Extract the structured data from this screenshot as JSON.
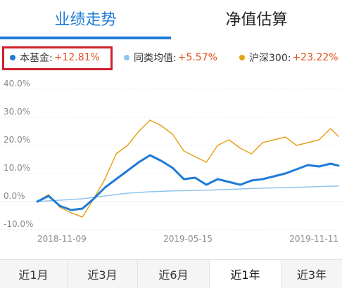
{
  "tabs": [
    {
      "label": "业绩走势",
      "active": true
    },
    {
      "label": "净值估算",
      "active": false
    }
  ],
  "legend": [
    {
      "label": "本基金:",
      "value": "+12.81%",
      "color": "#1e7bd6"
    },
    {
      "label": "同类均值:",
      "value": "+5.57%",
      "color": "#8fc4ec"
    },
    {
      "label": "沪深300:",
      "value": "+23.22%",
      "color": "#e3a21a"
    }
  ],
  "periods": [
    {
      "label": "近1月",
      "active": false
    },
    {
      "label": "近3月",
      "active": false
    },
    {
      "label": "近6月",
      "active": false
    },
    {
      "label": "近1年",
      "active": true
    },
    {
      "label": "近3年",
      "active": false
    }
  ],
  "chart_data": {
    "type": "line",
    "ylim": [
      -10,
      40
    ],
    "y_ticks": [
      "40.0%",
      "30.0%",
      "20.0%",
      "10.0%",
      "0.0%",
      "-10.0%"
    ],
    "x_tick_labels": [
      "2018-11-09",
      "2019-05-15",
      "2019-11-11"
    ],
    "x_range": [
      "2018-11-09",
      "2019-11-18"
    ],
    "grid": true,
    "series": [
      {
        "name": "本基金",
        "color": "#1e7bd6",
        "x": [
          "2018-11-09",
          "2018-11-23",
          "2018-12-07",
          "2018-12-21",
          "2019-01-04",
          "2019-01-18",
          "2019-02-01",
          "2019-02-15",
          "2019-03-01",
          "2019-03-15",
          "2019-03-29",
          "2019-04-12",
          "2019-04-26",
          "2019-05-10",
          "2019-05-24",
          "2019-06-07",
          "2019-06-21",
          "2019-07-05",
          "2019-07-19",
          "2019-08-02",
          "2019-08-16",
          "2019-08-30",
          "2019-09-13",
          "2019-09-27",
          "2019-10-11",
          "2019-10-25",
          "2019-11-08",
          "2019-11-18"
        ],
        "values": [
          0.0,
          2.0,
          -1.5,
          -3.0,
          -2.5,
          1.0,
          5.0,
          8.0,
          11.0,
          14.0,
          16.5,
          14.5,
          12.0,
          8.0,
          8.5,
          6.0,
          8.0,
          7.0,
          6.0,
          7.5,
          8.0,
          9.0,
          10.0,
          11.5,
          13.0,
          12.5,
          13.5,
          12.81
        ]
      },
      {
        "name": "同类均值",
        "color": "#8fc4ec",
        "x": [
          "2018-11-09",
          "2018-12-07",
          "2019-01-04",
          "2019-02-01",
          "2019-03-01",
          "2019-03-29",
          "2019-04-26",
          "2019-05-24",
          "2019-06-21",
          "2019-07-19",
          "2019-08-16",
          "2019-09-13",
          "2019-10-11",
          "2019-11-08",
          "2019-11-18"
        ],
        "values": [
          0.0,
          0.5,
          1.0,
          2.0,
          3.0,
          3.5,
          3.8,
          4.0,
          4.2,
          4.5,
          4.8,
          5.0,
          5.2,
          5.5,
          5.57
        ]
      },
      {
        "name": "沪深300",
        "color": "#e3a21a",
        "x": [
          "2018-11-09",
          "2018-11-23",
          "2018-12-07",
          "2018-12-21",
          "2019-01-04",
          "2019-01-18",
          "2019-02-01",
          "2019-02-15",
          "2019-03-01",
          "2019-03-15",
          "2019-03-29",
          "2019-04-12",
          "2019-04-26",
          "2019-05-10",
          "2019-05-24",
          "2019-06-07",
          "2019-06-21",
          "2019-07-05",
          "2019-07-19",
          "2019-08-02",
          "2019-08-16",
          "2019-08-30",
          "2019-09-13",
          "2019-09-27",
          "2019-10-11",
          "2019-10-25",
          "2019-11-08",
          "2019-11-18"
        ],
        "values": [
          0.0,
          2.5,
          -2.0,
          -4.0,
          -5.5,
          1.0,
          8.0,
          17.0,
          20.0,
          25.0,
          29.0,
          27.0,
          24.0,
          18.0,
          16.0,
          14.0,
          20.0,
          22.0,
          19.0,
          17.0,
          21.0,
          22.0,
          23.0,
          20.0,
          21.0,
          22.0,
          26.0,
          23.22
        ]
      }
    ]
  }
}
